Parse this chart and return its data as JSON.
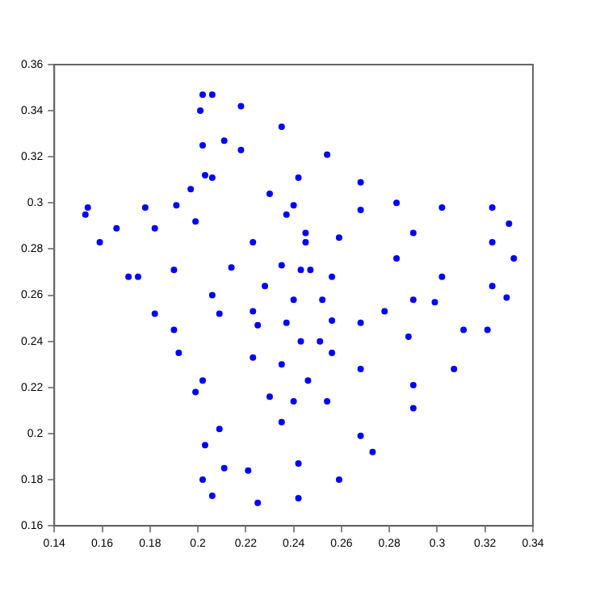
{
  "chart_data": {
    "type": "scatter",
    "marker": "circle",
    "legend": false,
    "grid": false,
    "xlim": [
      0.14,
      0.34
    ],
    "ylim": [
      0.16,
      0.36
    ],
    "xticks": [
      0.14,
      0.16,
      0.18,
      0.2,
      0.22,
      0.24,
      0.26,
      0.28,
      0.3,
      0.32,
      0.34
    ],
    "yticks": [
      0.16,
      0.18,
      0.2,
      0.22,
      0.24,
      0.26,
      0.28,
      0.3,
      0.32,
      0.34,
      0.36
    ],
    "series": [
      {
        "color": "#0000ff",
        "x": [
          0.202,
          0.206,
          0.218,
          0.235,
          0.254,
          0.268,
          0.283,
          0.302,
          0.323,
          0.33,
          0.332,
          0.329,
          0.321,
          0.307,
          0.29,
          0.273,
          0.259,
          0.242,
          0.225,
          0.206,
          0.202,
          0.203,
          0.199,
          0.192,
          0.182,
          0.171,
          0.159,
          0.153,
          0.154,
          0.178,
          0.191,
          0.197,
          0.203,
          0.202,
          0.201
        ],
        "values": [
          0.347,
          0.347,
          0.342,
          0.333,
          0.321,
          0.309,
          0.3,
          0.298,
          0.298,
          0.291,
          0.276,
          0.259,
          0.245,
          0.228,
          0.211,
          0.192,
          0.18,
          0.172,
          0.17,
          0.173,
          0.18,
          0.195,
          0.218,
          0.235,
          0.252,
          0.268,
          0.283,
          0.295,
          0.298,
          0.298,
          0.299,
          0.306,
          0.312,
          0.325,
          0.34
        ]
      },
      {
        "color": "#0000ff",
        "x": [
          0.166,
          0.182,
          0.199,
          0.206,
          0.211,
          0.218,
          0.242,
          0.268,
          0.29,
          0.323,
          0.323,
          0.311,
          0.29,
          0.268,
          0.242,
          0.221,
          0.211,
          0.209,
          0.202,
          0.19,
          0.175
        ],
        "values": [
          0.289,
          0.289,
          0.292,
          0.311,
          0.327,
          0.323,
          0.311,
          0.297,
          0.287,
          0.283,
          0.264,
          0.245,
          0.221,
          0.199,
          0.187,
          0.184,
          0.185,
          0.202,
          0.223,
          0.245,
          0.268
        ]
      },
      {
        "color": "#0000ff",
        "x": [
          0.19,
          0.214,
          0.223,
          0.23,
          0.24,
          0.259,
          0.283,
          0.302,
          0.299,
          0.288,
          0.268,
          0.254,
          0.235,
          0.23,
          0.223,
          0.209
        ],
        "values": [
          0.271,
          0.272,
          0.283,
          0.304,
          0.299,
          0.285,
          0.276,
          0.268,
          0.257,
          0.242,
          0.228,
          0.214,
          0.205,
          0.216,
          0.233,
          0.252
        ]
      },
      {
        "color": "#0000ff",
        "x": [
          0.206,
          0.228,
          0.235,
          0.237,
          0.245,
          0.256,
          0.29,
          0.268,
          0.256,
          0.24,
          0.235,
          0.225
        ],
        "values": [
          0.26,
          0.264,
          0.273,
          0.295,
          0.283,
          0.268,
          0.258,
          0.248,
          0.235,
          0.214,
          0.23,
          0.247
        ]
      },
      {
        "color": "#0000ff",
        "x": [
          0.223,
          0.24,
          0.243,
          0.245,
          0.247,
          0.252,
          0.278,
          0.256,
          0.251,
          0.246,
          0.243,
          0.237
        ],
        "values": [
          0.253,
          0.258,
          0.271,
          0.287,
          0.271,
          0.258,
          0.253,
          0.249,
          0.24,
          0.223,
          0.24,
          0.248
        ]
      }
    ]
  }
}
